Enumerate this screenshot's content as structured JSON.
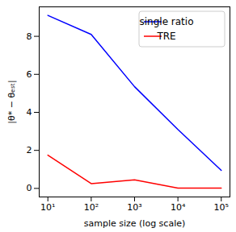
{
  "chart_data": {
    "type": "line",
    "x_label": "sample size (log scale)",
    "y_label": "|θ* − θₑₛₜ|",
    "x": [
      10,
      100,
      1000,
      10000,
      100000
    ],
    "series": [
      {
        "name": "single ratio",
        "color": "#0000ff",
        "values": [
          9.1,
          8.1,
          5.35,
          3.1,
          0.95
        ]
      },
      {
        "name": "TRE",
        "color": "#ff0000",
        "values": [
          1.75,
          0.25,
          0.45,
          0.02,
          0.02
        ]
      }
    ],
    "log": "x",
    "xlim": [
      6.31,
      158489
    ],
    "xticks": [
      {
        "value": 10,
        "label": "10¹"
      },
      {
        "value": 100,
        "label": "10²"
      },
      {
        "value": 1000,
        "label": "10³"
      },
      {
        "value": 10000,
        "label": "10⁴"
      },
      {
        "value": 100000,
        "label": "10⁵"
      }
    ],
    "ylim": [
      -0.45,
      9.55
    ],
    "yticks": [
      0,
      2,
      4,
      6,
      8
    ],
    "legend": "upper right",
    "grid": false
  }
}
